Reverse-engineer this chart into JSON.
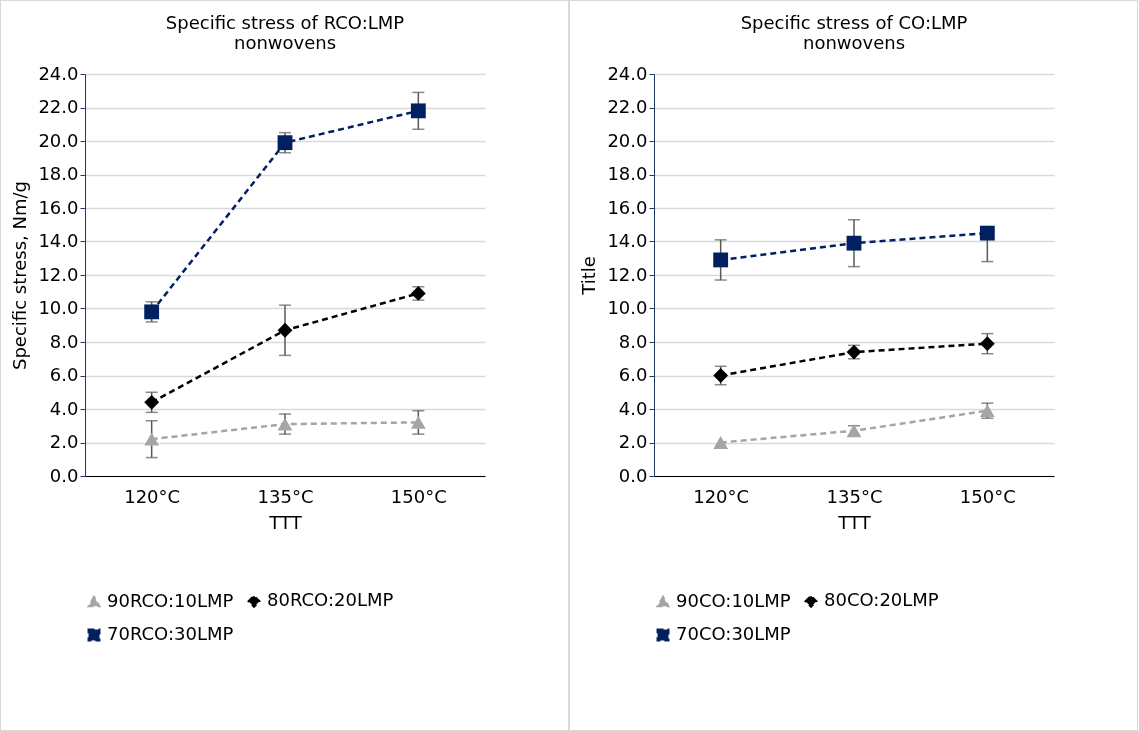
{
  "chart_data": [
    {
      "type": "line",
      "title": "Specific stress of RCO:LMP nonwovens",
      "xlabel": "TTT",
      "ylabel": "Specific stress, Nm/g",
      "categories": [
        "120°C",
        "135°C",
        "150°C"
      ],
      "ylim": [
        0,
        24
      ],
      "yticks": [
        {
          "value": 0,
          "label": "0.0"
        },
        {
          "value": 2,
          "label": "2.0"
        },
        {
          "value": 4,
          "label": "4.0"
        },
        {
          "value": 6,
          "label": "6.0"
        },
        {
          "value": 8,
          "label": "8.0"
        },
        {
          "value": 10,
          "label": "10.0"
        },
        {
          "value": 12,
          "label": "12.0"
        },
        {
          "value": 14,
          "label": "14.0"
        },
        {
          "value": 16,
          "label": "16.0"
        },
        {
          "value": 18,
          "label": "18.0"
        },
        {
          "value": 20,
          "label": "20.0"
        },
        {
          "value": 22,
          "label": "22.0"
        },
        {
          "value": 24,
          "label": "24.0"
        }
      ],
      "grid": "y",
      "legend": "bottom",
      "line_style": "dashed",
      "series": [
        {
          "name": "90RCO:10LMP",
          "color": "#a5a5a5",
          "marker": "triangle",
          "values": [
            2.2,
            3.1,
            3.2
          ],
          "errors": [
            1.1,
            0.6,
            0.7
          ]
        },
        {
          "name": "80RCO:20LMP",
          "color": "#000000",
          "marker": "diamond",
          "values": [
            4.4,
            8.7,
            10.9
          ],
          "errors": [
            0.6,
            1.5,
            0.4
          ]
        },
        {
          "name": "70RCO:30LMP",
          "color": "#002060",
          "marker": "square",
          "values": [
            9.8,
            19.9,
            21.8
          ],
          "errors": [
            0.6,
            0.6,
            1.1
          ]
        }
      ]
    },
    {
      "type": "line",
      "title": "Specific stress of CO:LMP nonwovens",
      "xlabel": "TTT",
      "ylabel": "Title",
      "categories": [
        "120°C",
        "135°C",
        "150°C"
      ],
      "ylim": [
        0,
        24
      ],
      "yticks": [
        {
          "value": 0,
          "label": "0.0"
        },
        {
          "value": 2,
          "label": "2.0"
        },
        {
          "value": 4,
          "label": "4.0"
        },
        {
          "value": 6,
          "label": "6.0"
        },
        {
          "value": 8,
          "label": "8.0"
        },
        {
          "value": 10,
          "label": "10.0"
        },
        {
          "value": 12,
          "label": "12.0"
        },
        {
          "value": 14,
          "label": "14.0"
        },
        {
          "value": 16,
          "label": "16.0"
        },
        {
          "value": 18,
          "label": "18.0"
        },
        {
          "value": 20,
          "label": "20.0"
        },
        {
          "value": 22,
          "label": "22.0"
        },
        {
          "value": 24,
          "label": "24.0"
        }
      ],
      "grid": "y",
      "legend": "bottom",
      "line_style": "dashed",
      "series": [
        {
          "name": "90CO:10LMP",
          "color": "#a5a5a5",
          "marker": "triangle",
          "values": [
            2.0,
            2.7,
            3.9
          ],
          "errors": [
            null,
            0.3,
            0.45
          ]
        },
        {
          "name": "80CO:20LMP",
          "color": "#000000",
          "marker": "diamond",
          "values": [
            6.0,
            7.4,
            7.9
          ],
          "errors": [
            0.55,
            0.4,
            0.6
          ]
        },
        {
          "name": "70CO:30LMP",
          "color": "#002060",
          "marker": "square",
          "values": [
            12.9,
            13.9,
            14.5
          ],
          "errors": [
            1.2,
            1.4,
            [
              12.8,
              14.5
            ]
          ]
        }
      ]
    }
  ]
}
